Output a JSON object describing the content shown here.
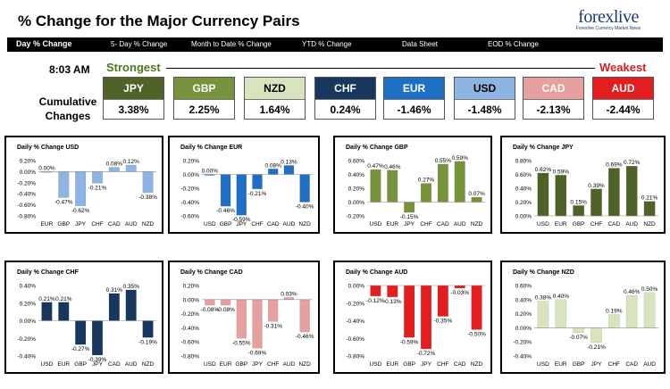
{
  "header": {
    "title": "% Change for the Major Currency Pairs",
    "logo_brand": "forexlive",
    "logo_tagline": "Forexlive Currency Market News"
  },
  "tabs": [
    {
      "label": "Day % Change",
      "active": true
    },
    {
      "label": "5- Day % Change",
      "active": false
    },
    {
      "label": "Month to Date % Change",
      "active": false
    },
    {
      "label": "YTD % Change",
      "active": false
    },
    {
      "label": "Data Sheet",
      "active": false
    },
    {
      "label": "EOD % Change",
      "active": false
    }
  ],
  "summary": {
    "time": "8:03 AM",
    "strongest_label": "Strongest",
    "weakest_label": "Weakest",
    "cumulative_label_1": "Cumulative",
    "cumulative_label_2": "Changes",
    "currencies": [
      {
        "name": "JPY",
        "value": "3.38%",
        "color": "#4f6228",
        "text_color": "#ffffff"
      },
      {
        "name": "GBP",
        "value": "2.25%",
        "color": "#77933c",
        "text_color": "#ffffff"
      },
      {
        "name": "NZD",
        "value": "1.64%",
        "color": "#d7e4bd",
        "text_color": "#000000"
      },
      {
        "name": "CHF",
        "value": "0.24%",
        "color": "#17375e",
        "text_color": "#ffffff"
      },
      {
        "name": "EUR",
        "value": "-1.46%",
        "color": "#1f6fc6",
        "text_color": "#ffffff"
      },
      {
        "name": "USD",
        "value": "-1.48%",
        "color": "#8eb4e3",
        "text_color": "#000000"
      },
      {
        "name": "CAD",
        "value": "-2.13%",
        "color": "#e6a0a0",
        "text_color": "#ffffff"
      },
      {
        "name": "AUD",
        "value": "-2.44%",
        "color": "#e41e1e",
        "text_color": "#ffffff"
      }
    ]
  },
  "chart_data": [
    {
      "type": "bar",
      "title": "Daily % Change USD",
      "categories": [
        "EUR",
        "GBP",
        "JPY",
        "CHF",
        "CAD",
        "AUD",
        "NZD"
      ],
      "values": [
        0.0,
        -0.47,
        -0.62,
        -0.21,
        0.08,
        0.12,
        -0.38
      ],
      "labels": [
        "0.00%",
        "-0.47%",
        "-0.62%",
        "-0.21%",
        "0.08%",
        "0.12%",
        "-0.38%"
      ],
      "ylim": [
        -0.8,
        0.2
      ],
      "yticks": [
        "0.20%",
        "0.00%",
        "-0.20%",
        "-0.40%",
        "-0.60%",
        "-0.80%"
      ],
      "color": "#8eb4e3"
    },
    {
      "type": "bar",
      "title": "Daily % Change EUR",
      "categories": [
        "USD",
        "GBP",
        "JPY",
        "CHF",
        "CAD",
        "AUD",
        "NZD"
      ],
      "values": [
        0.0,
        -0.46,
        -0.59,
        -0.21,
        0.08,
        0.13,
        -0.4
      ],
      "labels": [
        "0.00%",
        "-0.46%",
        "-0.59%",
        "-0.21%",
        "0.08%",
        "0.13%",
        "-0.40%"
      ],
      "ylim": [
        -0.6,
        0.2
      ],
      "yticks": [
        "0.20%",
        "0.00%",
        "-0.20%",
        "-0.40%",
        "-0.60%"
      ],
      "color": "#1f6fc6"
    },
    {
      "type": "bar",
      "title": "Daily % Change GBP",
      "categories": [
        "USD",
        "EUR",
        "JPY",
        "CHF",
        "CAD",
        "AUD",
        "NZD"
      ],
      "values": [
        0.47,
        0.46,
        -0.15,
        0.27,
        0.55,
        0.59,
        0.07
      ],
      "labels": [
        "0.47%",
        "0.46%",
        "-0.15%",
        "0.27%",
        "0.55%",
        "0.59%",
        "0.07%"
      ],
      "ylim": [
        -0.2,
        0.6
      ],
      "yticks": [
        "0.60%",
        "0.40%",
        "0.20%",
        "0.00%",
        "-0.20%"
      ],
      "color": "#77933c"
    },
    {
      "type": "bar",
      "title": "Daily % Change JPY",
      "categories": [
        "USD",
        "EUR",
        "GBP",
        "CHF",
        "CAD",
        "AUD",
        "NZD"
      ],
      "values": [
        0.62,
        0.59,
        0.15,
        0.39,
        0.69,
        0.72,
        0.21
      ],
      "labels": [
        "0.62%",
        "0.59%",
        "0.15%",
        "0.39%",
        "0.69%",
        "0.72%",
        "0.21%"
      ],
      "ylim": [
        0.0,
        0.8
      ],
      "yticks": [
        "0.80%",
        "0.60%",
        "0.40%",
        "0.20%",
        "0.00%"
      ],
      "color": "#4f6228"
    },
    {
      "type": "bar",
      "title": "Daily % Change CHF",
      "categories": [
        "USD",
        "EUR",
        "GBP",
        "JPY",
        "CAD",
        "AUD",
        "NZD"
      ],
      "values": [
        0.21,
        0.21,
        -0.27,
        -0.39,
        0.31,
        0.35,
        -0.19
      ],
      "labels": [
        "0.21%",
        "0.21%",
        "-0.27%",
        "-0.39%",
        "0.31%",
        "0.35%",
        "-0.19%"
      ],
      "ylim": [
        -0.4,
        0.4
      ],
      "yticks": [
        "0.40%",
        "0.20%",
        "0.00%",
        "-0.20%",
        "-0.40%"
      ],
      "color": "#17375e"
    },
    {
      "type": "bar",
      "title": "Daily % Change CAD",
      "categories": [
        "USD",
        "EUR",
        "GBP",
        "JPY",
        "CHF",
        "AUD",
        "NZD"
      ],
      "values": [
        -0.08,
        -0.08,
        -0.55,
        -0.69,
        -0.31,
        0.03,
        -0.46
      ],
      "labels": [
        "-0.08%",
        "-0.08%",
        "-0.55%",
        "-0.69%",
        "-0.31%",
        "0.03%",
        "-0.46%"
      ],
      "ylim": [
        -0.8,
        0.2
      ],
      "yticks": [
        "0.20%",
        "0.00%",
        "-0.20%",
        "-0.40%",
        "-0.60%",
        "-0.80%"
      ],
      "color": "#e6a0a0"
    },
    {
      "type": "bar",
      "title": "Daily % Change AUD",
      "categories": [
        "USD",
        "EUR",
        "GBP",
        "JPY",
        "CHF",
        "CAD",
        "NZD"
      ],
      "values": [
        -0.12,
        -0.13,
        -0.59,
        -0.72,
        -0.35,
        -0.03,
        -0.5
      ],
      "labels": [
        "-0.12%",
        "-0.13%",
        "-0.59%",
        "-0.72%",
        "-0.35%",
        "-0.03%",
        "-0.50%"
      ],
      "ylim": [
        -0.8,
        0.0
      ],
      "yticks": [
        "0.00%",
        "-0.20%",
        "-0.40%",
        "-0.60%",
        "-0.80%"
      ],
      "color": "#e41e1e"
    },
    {
      "type": "bar",
      "title": "Daily % Change NZD",
      "categories": [
        "USD",
        "EUR",
        "GBP",
        "JPY",
        "CHF",
        "CAD",
        "AUD"
      ],
      "values": [
        0.38,
        0.4,
        -0.07,
        -0.21,
        0.19,
        0.46,
        0.5
      ],
      "labels": [
        "0.38%",
        "0.40%",
        "-0.07%",
        "-0.21%",
        "0.19%",
        "0.46%",
        "0.50%"
      ],
      "ylim": [
        -0.4,
        0.6
      ],
      "yticks": [
        "0.60%",
        "0.40%",
        "0.20%",
        "0.00%",
        "-0.20%",
        "-0.40%"
      ],
      "color": "#d7e4bd"
    }
  ]
}
